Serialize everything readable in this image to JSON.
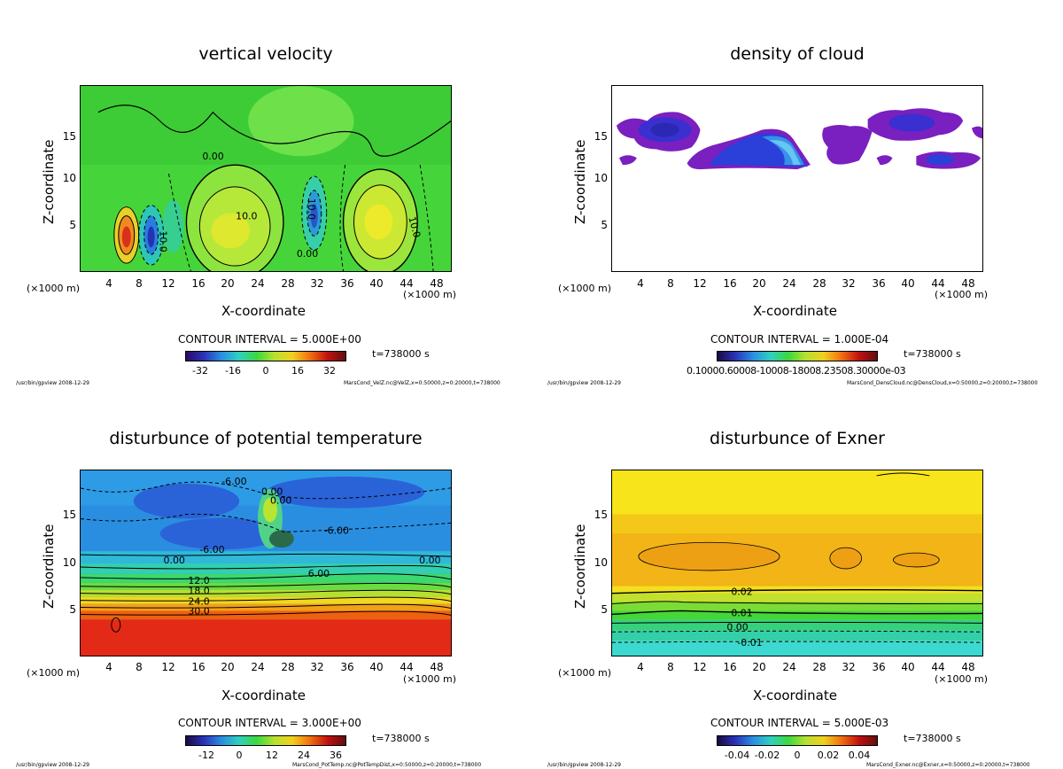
{
  "common": {
    "xlabel": "X-coordinate",
    "ylabel": "Z-coordinate",
    "unit_left": "(×1000 m)",
    "unit_right": "(×1000 m)",
    "time_label": "t=738000 s",
    "footer_left": "/usr/bin/gpview  2008-12-29",
    "colors": {
      "ice_violet": "#7a1fc0",
      "ice_blue": "#1e3fd6"
    }
  },
  "chart_data": [
    {
      "type": "heatmap",
      "title": "vertical velocity",
      "xlabel": "X-coordinate",
      "ylabel": "Z-coordinate",
      "xlim": [
        0,
        50
      ],
      "ylim": [
        0,
        20
      ],
      "xticks": [
        "4",
        "8",
        "12",
        "16",
        "20",
        "24",
        "28",
        "32",
        "36",
        "40",
        "44",
        "48"
      ],
      "yticks": [
        "5",
        "10",
        "15"
      ],
      "contour_interval": "CONTOUR INTERVAL = 5.000E+00",
      "colorbar_ticks": [
        "-32",
        "-16",
        "0",
        "16",
        "32"
      ],
      "colorbar_range": [
        -40,
        40
      ],
      "contour_labels": [
        "0.00",
        "10.0",
        "10.0",
        "0.00",
        "10.0",
        "10.0"
      ],
      "footer_right": "MarsCond_VelZ.nc@VelZ,x=0:50000,z=0:20000,t=738000",
      "time": "t=738000 s"
    },
    {
      "type": "heatmap",
      "title": "density of cloud",
      "xlabel": "X-coordinate",
      "ylabel": "Z-coordinate",
      "xlim": [
        0,
        50
      ],
      "ylim": [
        0,
        20
      ],
      "xticks": [
        "4",
        "8",
        "12",
        "16",
        "20",
        "24",
        "28",
        "32",
        "36",
        "40",
        "44",
        "48"
      ],
      "yticks": [
        "5",
        "10",
        "15"
      ],
      "contour_interval": "CONTOUR INTERVAL = 1.000E-04",
      "colorbar_tick_text": "0.10000.60008-10008-18008.23508.30000e-03",
      "footer_right": "MarsCond_DensCloud.nc@DensCloud,x=0:50000,z=0:20000,t=738000",
      "time": "t=738000 s"
    },
    {
      "type": "heatmap",
      "title": "disturbunce of potential temperature",
      "xlabel": "X-coordinate",
      "ylabel": "Z-coordinate",
      "xlim": [
        0,
        50
      ],
      "ylim": [
        0,
        20
      ],
      "xticks": [
        "4",
        "8",
        "12",
        "16",
        "20",
        "24",
        "28",
        "32",
        "36",
        "40",
        "44",
        "48"
      ],
      "yticks": [
        "5",
        "10",
        "15"
      ],
      "contour_interval": "CONTOUR INTERVAL = 3.000E+00",
      "colorbar_ticks": [
        "-12",
        "0",
        "12",
        "24",
        "36"
      ],
      "colorbar_range": [
        -20,
        40
      ],
      "contour_labels": [
        "-6.00",
        "0.00",
        "0.00",
        "-6.00",
        "-6.00",
        "0.00",
        "6.00",
        "0.00",
        "12.0",
        "18.0",
        "24.0",
        "30.0"
      ],
      "footer_right": "MarsCond_PotTemp.nc@PotTempDist,x=0:50000,z=0:20000,t=738000",
      "time": "t=738000 s"
    },
    {
      "type": "heatmap",
      "title": "disturbunce of Exner",
      "xlabel": "X-coordinate",
      "ylabel": "Z-coordinate",
      "xlim": [
        0,
        50
      ],
      "ylim": [
        0,
        20
      ],
      "xticks": [
        "4",
        "8",
        "12",
        "16",
        "20",
        "24",
        "28",
        "32",
        "36",
        "40",
        "44",
        "48"
      ],
      "yticks": [
        "5",
        "10",
        "15"
      ],
      "contour_interval": "CONTOUR INTERVAL = 5.000E-03",
      "colorbar_ticks": [
        "-0.04",
        "-0.02",
        "0",
        "0.02",
        "0.04"
      ],
      "colorbar_range": [
        -0.05,
        0.05
      ],
      "contour_labels": [
        "0.02",
        "0.01",
        "0.00",
        "-0.01"
      ],
      "footer_right": "MarsCond_Exner.nc@Exner,x=0:50000,z=0:20000,t=738000",
      "time": "t=738000 s"
    }
  ]
}
